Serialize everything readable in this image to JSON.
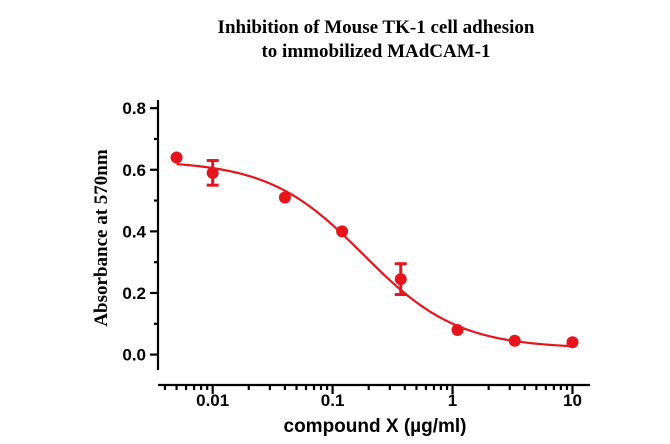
{
  "chart_data": {
    "type": "scatter",
    "title_line1": "Inhibition of Mouse TK-1 cell adhesion",
    "title_line2": "to immobilized MAdCAM-1",
    "xlabel": "compound X (µg/ml)",
    "ylabel": "Absorbance at 570nm",
    "x_scale": "log",
    "xlim": [
      0.0035,
      14
    ],
    "ylim": [
      -0.05,
      0.82
    ],
    "x_ticks": [
      {
        "value": 0.01,
        "label": "0.01"
      },
      {
        "value": 0.1,
        "label": "0.1"
      },
      {
        "value": 1,
        "label": "1"
      },
      {
        "value": 10,
        "label": "10"
      }
    ],
    "y_ticks": [
      {
        "value": 0.0,
        "label": "0.0"
      },
      {
        "value": 0.2,
        "label": "0.2"
      },
      {
        "value": 0.4,
        "label": "0.4"
      },
      {
        "value": 0.6,
        "label": "0.6"
      },
      {
        "value": 0.8,
        "label": "0.8"
      }
    ],
    "series": [
      {
        "color": "#e8141b",
        "points": [
          {
            "x": 0.005,
            "y": 0.64,
            "err": 0
          },
          {
            "x": 0.01,
            "y": 0.59,
            "err": 0.04
          },
          {
            "x": 0.04,
            "y": 0.51,
            "err": 0
          },
          {
            "x": 0.12,
            "y": 0.4,
            "err": 0
          },
          {
            "x": 0.37,
            "y": 0.245,
            "err": 0.05
          },
          {
            "x": 1.1,
            "y": 0.08,
            "err": 0
          },
          {
            "x": 3.3,
            "y": 0.045,
            "err": 0
          },
          {
            "x": 10,
            "y": 0.04,
            "err": 0
          }
        ],
        "fit": {
          "model": "four-parameter logistic",
          "top": 0.63,
          "bottom": 0.02,
          "ec50": 0.18,
          "hill": 1.1
        }
      }
    ],
    "grid": false,
    "legend": "none"
  }
}
